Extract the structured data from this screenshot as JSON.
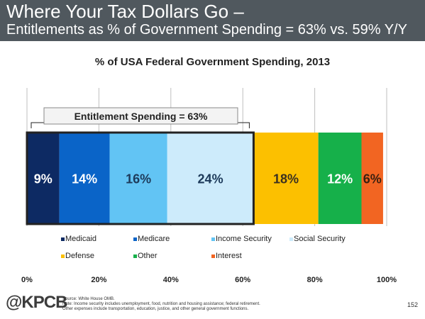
{
  "header": {
    "title": "Where Your Tax Dollars Go –",
    "subtitle": "Entitlements as % of Government Spending = 63% vs. 59% Y/Y"
  },
  "chart_data": {
    "type": "bar",
    "orientation": "horizontal-stacked",
    "title": "% of USA Federal Government Spending, 2013",
    "xlim": [
      0,
      100
    ],
    "x_ticks": [
      "0%",
      "20%",
      "40%",
      "60%",
      "80%",
      "100%"
    ],
    "grid": true,
    "legend_position": "bottom",
    "annotation": "Entitlement Spending = 63%",
    "series": [
      {
        "name": "Medicaid",
        "value": 9,
        "label": "9%",
        "color": "#0d2a63",
        "label_color": "#ffffff"
      },
      {
        "name": "Medicare",
        "value": 14,
        "label": "14%",
        "color": "#0a64c8",
        "label_color": "#ffffff"
      },
      {
        "name": "Income Security",
        "value": 16,
        "label": "16%",
        "color": "#62c4f4",
        "label_color": "#1d3a5a"
      },
      {
        "name": "Social Security",
        "value": 24,
        "label": "24%",
        "color": "#cdebfb",
        "label_color": "#1d3a5a"
      },
      {
        "name": "Defense",
        "value": 18,
        "label": "18%",
        "color": "#fcc000",
        "label_color": "#3a3020"
      },
      {
        "name": "Other",
        "value": 12,
        "label": "12%",
        "color": "#16b04a",
        "label_color": "#ffffff"
      },
      {
        "name": "Interest",
        "value": 6,
        "label": "6%",
        "color": "#f26522",
        "label_color": "#3a2010"
      }
    ]
  },
  "footer": {
    "logo": "@KPCB",
    "source_lines": [
      "Source: White House OMB.",
      "Note: Income security includes unemployment, food, nutrition and housing assistance; federal retirement.",
      "Other expenses include transportation, education, justice, and other general government functions."
    ],
    "page_number": "152"
  },
  "colors": {
    "header_bg": "#50585e",
    "grid": "#bfbfbf"
  }
}
